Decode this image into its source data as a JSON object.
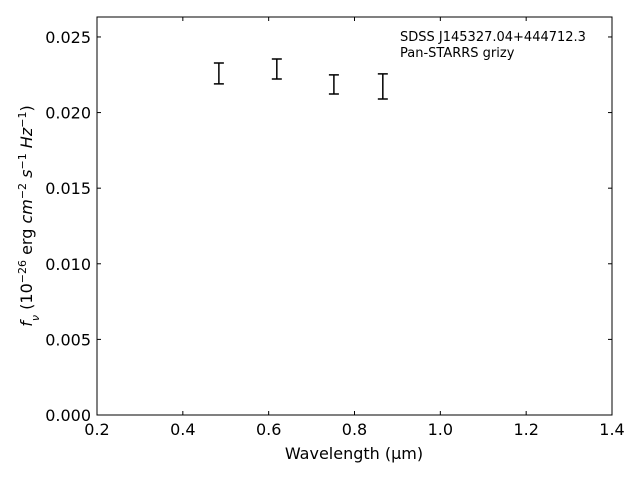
{
  "chart_data": {
    "type": "errorbar",
    "annotations": [
      "SDSS J145327.04+444712.3",
      "Pan-STARRS grizy"
    ],
    "xlabel": "Wavelength (μm)",
    "ylabel": [
      {
        "text": "f",
        "style": "italic"
      },
      {
        "text": "ν",
        "style": "sub"
      },
      {
        "text": " (10",
        "style": "normal"
      },
      {
        "text": "−26",
        "style": "sup"
      },
      {
        "text": " erg ",
        "style": "normal"
      },
      {
        "text": "cm",
        "style": "italic"
      },
      {
        "text": "−2",
        "style": "sup"
      },
      {
        "text": " ",
        "style": "normal"
      },
      {
        "text": "s",
        "style": "italic"
      },
      {
        "text": "−1",
        "style": "sup"
      },
      {
        "text": " ",
        "style": "normal"
      },
      {
        "text": "Hz",
        "style": "italic"
      },
      {
        "text": "−1",
        "style": "sup"
      },
      {
        "text": ")",
        "style": "normal"
      }
    ],
    "x": [
      0.484,
      0.619,
      0.752,
      0.866
    ],
    "values": [
      0.02259,
      0.02288,
      0.02186,
      0.02173
    ],
    "errors": [
      0.00069,
      0.00066,
      0.00063,
      0.00083
    ],
    "color": "#000000",
    "xlim": [
      0.2,
      1.4
    ],
    "xticks": [
      0.2,
      0.4,
      0.6,
      0.8,
      {
        "value": 1,
        "label": "1.0"
      },
      1.2,
      1.4
    ],
    "ylim": [
      0,
      0.02632
    ],
    "yticks": [
      {
        "value": 0,
        "label": "0.000"
      },
      0.005,
      {
        "value": 0.01,
        "label": "0.010"
      },
      0.015,
      {
        "value": 0.02,
        "label": "0.020"
      },
      0.025
    ]
  }
}
